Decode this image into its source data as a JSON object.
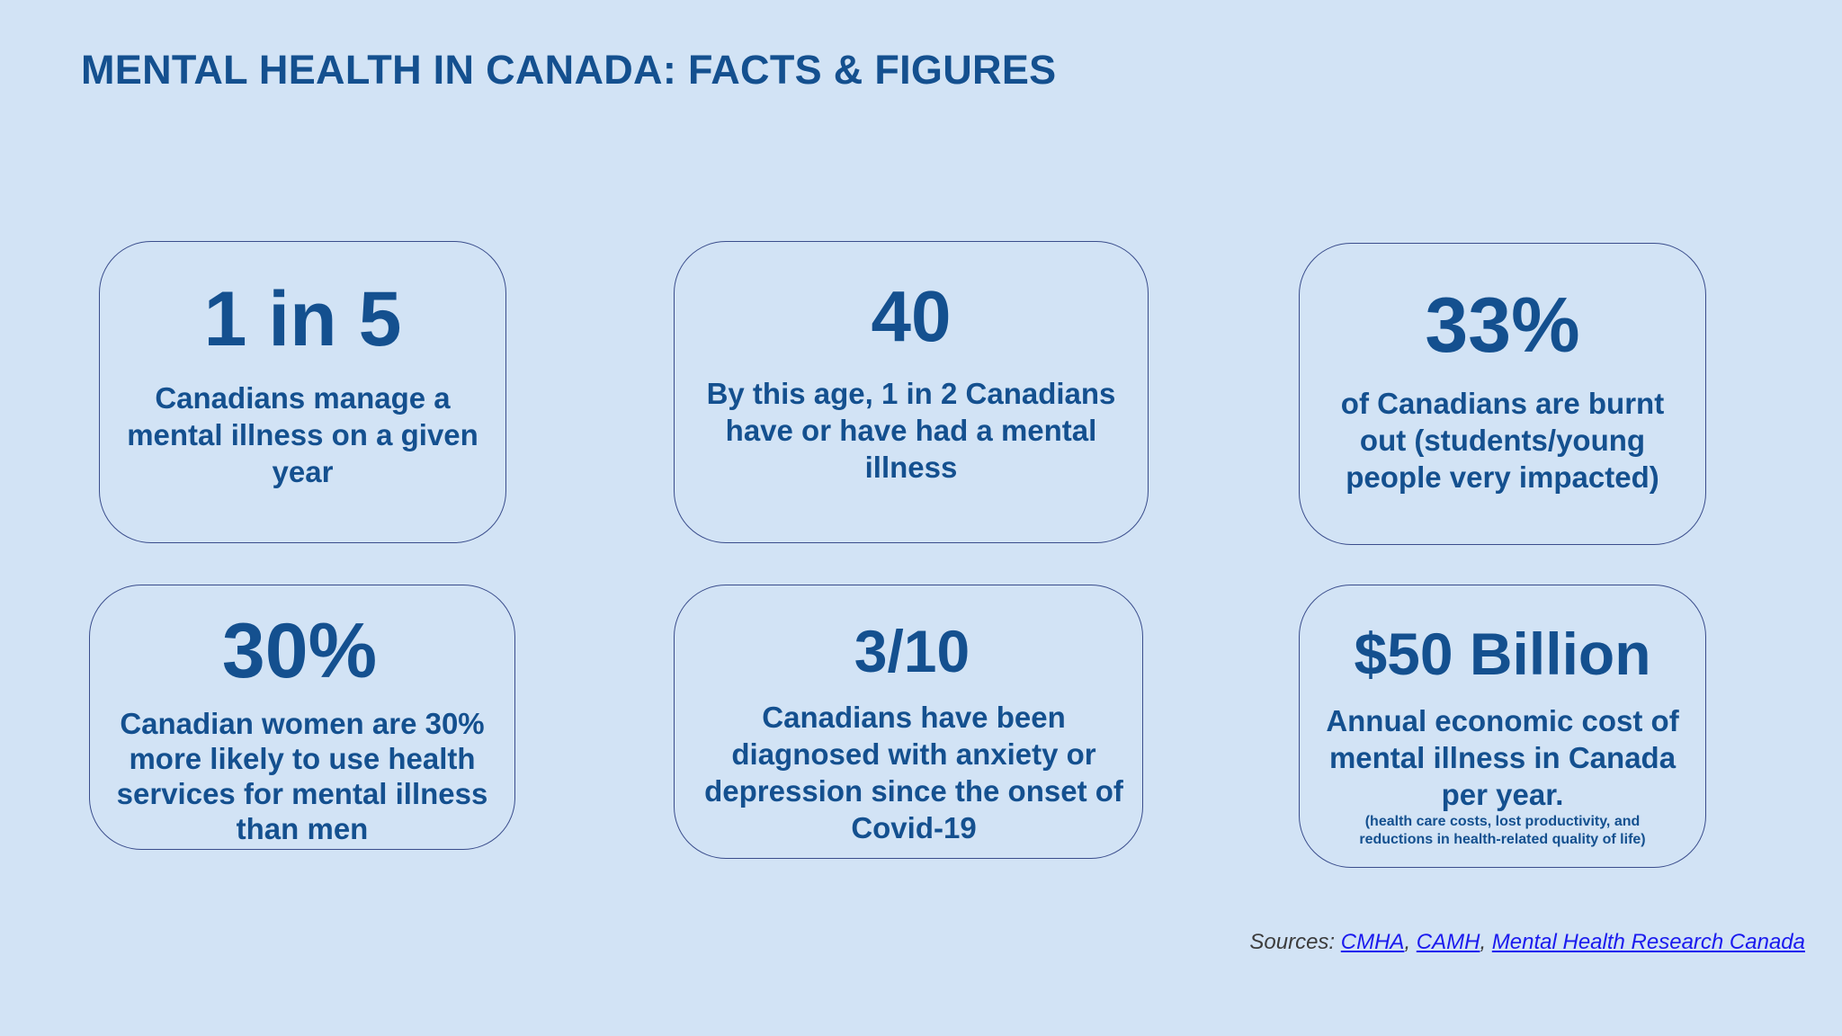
{
  "page": {
    "title": "MENTAL HEALTH IN CANADA: FACTS & FIGURES"
  },
  "cards": [
    {
      "stat": "1 in 5",
      "description": "Canadians manage a mental illness on a given year"
    },
    {
      "stat": "40",
      "description": "By this age, 1 in 2 Canadians have or have had a mental illness"
    },
    {
      "stat": "33%",
      "description": "of Canadians are burnt out (students/young people very impacted)"
    },
    {
      "stat": "30%",
      "description": "Canadian women are 30% more likely to use health services for mental illness than men"
    },
    {
      "stat": "3/10",
      "description": "Canadians have been diagnosed with anxiety or depression since the onset of Covid-19"
    },
    {
      "stat": "$50 Billion",
      "description": "Annual economic cost of mental illness in Canada per year.",
      "note": "(health care costs, lost productivity, and reductions in health-related quality of life)"
    }
  ],
  "sources": {
    "label": "Sources: ",
    "sep": ", ",
    "links": [
      "CMHA",
      "CAMH",
      "Mental Health Research Canada"
    ]
  },
  "colors": {
    "background": "#d2e3f5",
    "text": "#14508f",
    "border": "#3a4d8c",
    "link": "#1a1aee"
  }
}
